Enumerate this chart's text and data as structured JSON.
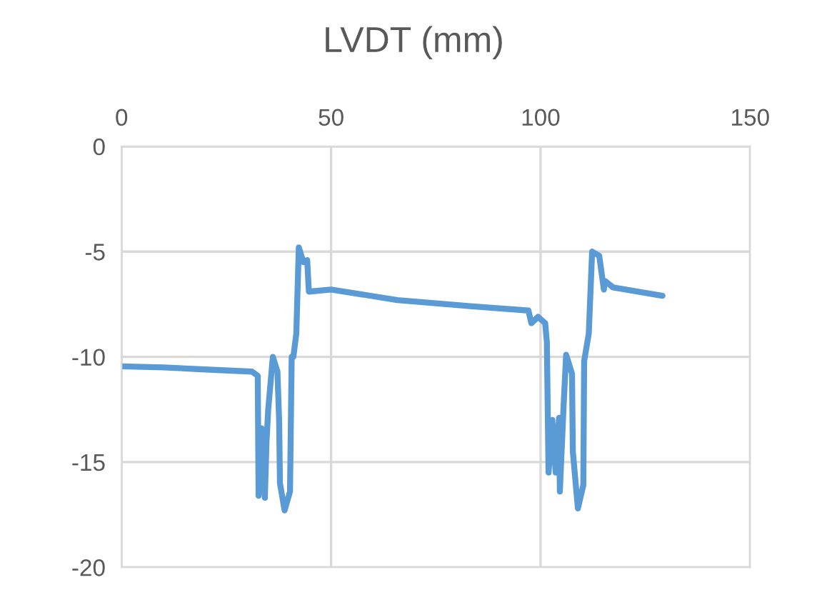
{
  "chart_data": {
    "type": "line",
    "title": "LVDT (mm)",
    "x": [
      0,
      10,
      20,
      31.1,
      32.5,
      32.7,
      33.4,
      34.2,
      34.6,
      35.0,
      36.1,
      37.2,
      37.6,
      37.8,
      38.9,
      40.2,
      40.6,
      41.0,
      41.7,
      42.3,
      43.4,
      44.3,
      44.7,
      50,
      65.8,
      83.7,
      97.1,
      97.8,
      99.4,
      101.1,
      101.5,
      101.9,
      102.8,
      103.6,
      104.4,
      104.6,
      105.5,
      106.1,
      107.5,
      107.7,
      108.9,
      110.2,
      110.4,
      111.5,
      112.3,
      114,
      115.1,
      115.4,
      117.3,
      129.1
    ],
    "series": [
      {
        "color": "#5b9bd5",
        "values": [
          -10.45,
          -10.5,
          -10.6,
          -10.7,
          -10.9,
          -16.6,
          -13.4,
          -16.7,
          -14.0,
          -12.5,
          -10.0,
          -10.7,
          -13.0,
          -16.0,
          -17.3,
          -16.4,
          -10.0,
          -10.0,
          -8.9,
          -4.8,
          -5.5,
          -5.4,
          -6.9,
          -6.8,
          -7.3,
          -7.6,
          -7.8,
          -8.4,
          -8.1,
          -8.4,
          -9.3,
          -15.5,
          -13.0,
          -15.5,
          -12.9,
          -16.4,
          -12.3,
          -9.9,
          -10.8,
          -14.5,
          -17.2,
          -16.1,
          -10.2,
          -8.9,
          -5.0,
          -5.2,
          -6.8,
          -6.4,
          -6.7,
          -7.1
        ]
      }
    ],
    "xlim": [
      0,
      150
    ],
    "xticks": [
      0,
      50,
      100,
      150
    ],
    "ylim": [
      -20,
      0
    ],
    "yticks": [
      -20,
      -15,
      -10,
      -5,
      0
    ],
    "grid": true,
    "legend": false
  }
}
